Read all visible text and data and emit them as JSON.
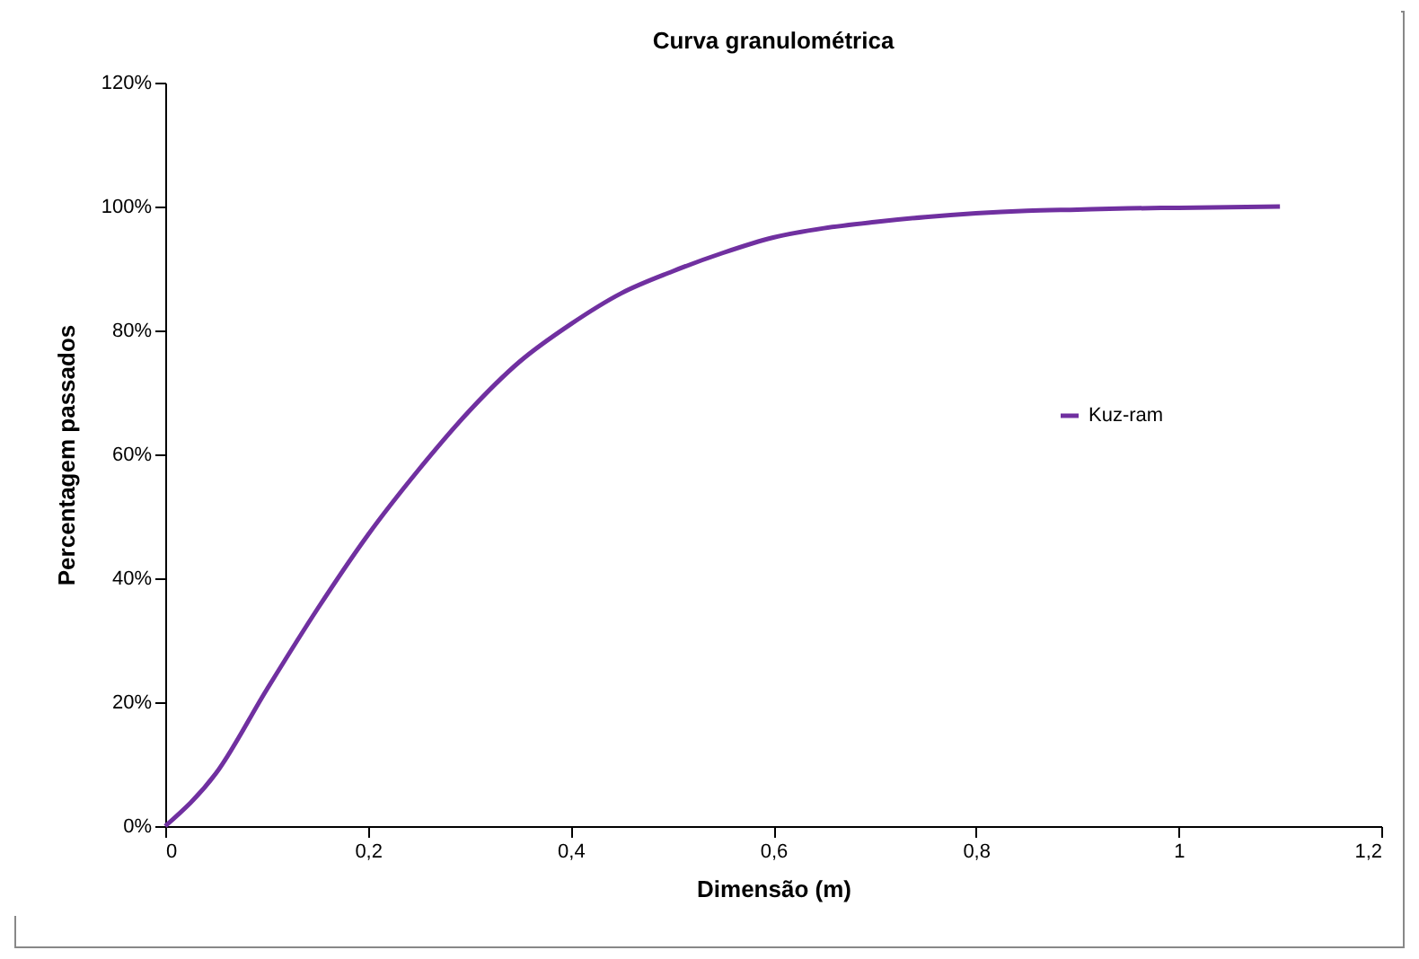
{
  "chart_data": {
    "type": "line",
    "title": "Curva granulométrica",
    "xlabel": "Dimensão (m)",
    "ylabel": "Percentagem passados",
    "x": [
      0,
      0.05,
      0.1,
      0.15,
      0.2,
      0.25,
      0.3,
      0.35,
      0.4,
      0.45,
      0.5,
      0.55,
      0.6,
      0.65,
      0.7,
      0.75,
      0.8,
      0.85,
      0.9,
      0.95,
      1.0,
      1.05,
      1.1
    ],
    "series": [
      {
        "name": "Kuz-ram",
        "color": "#7030a0",
        "values": [
          0,
          8.5,
          22,
          35,
          47,
          57.5,
          67,
          75,
          81,
          86,
          89.5,
          92.5,
          95,
          96.5,
          97.5,
          98.3,
          98.9,
          99.3,
          99.5,
          99.7,
          99.8,
          99.9,
          100
        ]
      }
    ],
    "xlim": [
      0,
      1.2
    ],
    "xticks": [
      0,
      {
        "value": 0.2,
        "label": "0,2"
      },
      {
        "value": 0.4,
        "label": "0,4"
      },
      {
        "value": 0.6,
        "label": "0,6"
      },
      {
        "value": 0.8,
        "label": "0,8"
      },
      1,
      {
        "value": 1.2,
        "label": "1,2"
      }
    ],
    "ylim": [
      0,
      120
    ],
    "yticks": [
      {
        "value": 0,
        "label": "0%"
      },
      {
        "value": 20,
        "label": "20%"
      },
      {
        "value": 40,
        "label": "40%"
      },
      {
        "value": 60,
        "label": "60%"
      },
      {
        "value": 80,
        "label": "80%"
      },
      {
        "value": 100,
        "label": "100%"
      },
      {
        "value": 120,
        "label": "120%"
      }
    ],
    "legend": "right",
    "grid": false,
    "marker": "none",
    "line_style": "solid"
  }
}
